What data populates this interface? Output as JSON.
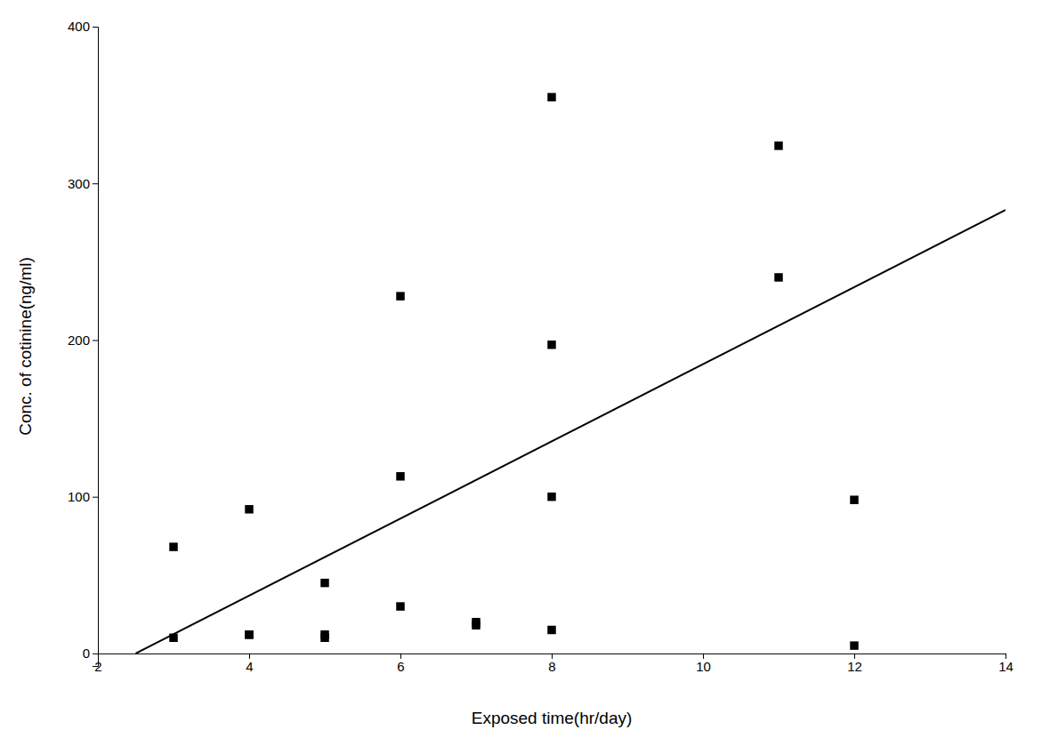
{
  "chart_data": {
    "type": "scatter",
    "xlabel": "Exposed time(hr/day)",
    "ylabel": "Conc. of cotinine(ng/ml)",
    "series": [
      {
        "type": "scatter",
        "marker": "square",
        "color": "black",
        "x": [
          3,
          3,
          4,
          4,
          4,
          5,
          5,
          5,
          6,
          6,
          6,
          7,
          7,
          8,
          8,
          8,
          8,
          11,
          11,
          12,
          12
        ],
        "values": [
          10,
          68,
          12,
          12,
          92,
          45,
          10,
          12,
          113,
          30,
          228,
          18,
          20,
          355,
          197,
          100,
          15,
          324,
          240,
          5,
          98
        ]
      },
      {
        "type": "line",
        "line_style": "solid",
        "color": "black",
        "x": [
          2.5,
          14
        ],
        "values": [
          0,
          283
        ]
      }
    ],
    "xlim": [
      2,
      14
    ],
    "ylim": [
      -8,
      400
    ],
    "xticks": [
      2,
      4,
      6,
      8,
      10,
      12,
      14
    ],
    "yticks": [
      0,
      100,
      200,
      300,
      400
    ],
    "grid": false
  }
}
